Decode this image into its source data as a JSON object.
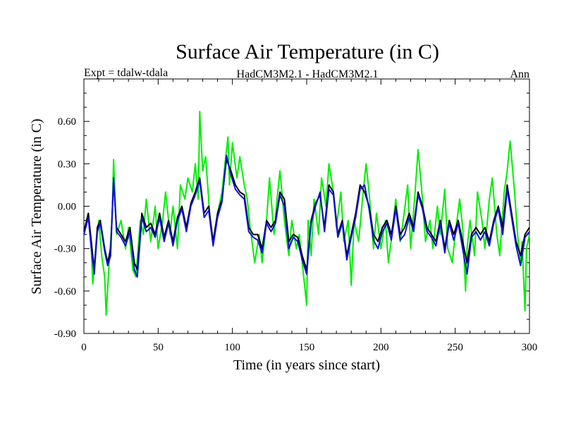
{
  "chart_data": {
    "type": "line",
    "title": "Surface Air Temperature (in C)",
    "subtitle_left": "Expt = tdalw-tdala",
    "subtitle_center": "HadCM3M2.1 - HadCM3M2.1",
    "subtitle_right": "Ann",
    "xlabel": "Time (in years since start)",
    "ylabel": "Surface Air Temperature (in C)",
    "xlim": [
      0,
      300
    ],
    "ylim": [
      -0.9,
      0.9
    ],
    "x_ticks": [
      0,
      50,
      100,
      150,
      200,
      250,
      300
    ],
    "x_tick_labels": [
      "0",
      "50",
      "100",
      "150",
      "200",
      "250",
      "300"
    ],
    "y_ticks": [
      -0.9,
      -0.6,
      -0.3,
      0.0,
      0.3,
      0.6
    ],
    "y_tick_labels": [
      "-0.90",
      "-0.60",
      "-0.30",
      "0.00",
      "0.30",
      "0.60"
    ],
    "grid": false,
    "series": [
      {
        "name": "green",
        "color": "#00ee00",
        "x": [
          0,
          3,
          5,
          6,
          8,
          10,
          12,
          14,
          15,
          17,
          19,
          20,
          22,
          25,
          28,
          30,
          33,
          35,
          38,
          40,
          42,
          45,
          48,
          50,
          53,
          55,
          58,
          60,
          63,
          65,
          68,
          70,
          73,
          75,
          77,
          78,
          80,
          82,
          85,
          87,
          90,
          93,
          95,
          97,
          98,
          100,
          103,
          105,
          108,
          110,
          112,
          115,
          118,
          120,
          123,
          125,
          128,
          130,
          132,
          135,
          138,
          140,
          143,
          145,
          148,
          150,
          151,
          153,
          155,
          158,
          160,
          163,
          165,
          168,
          170,
          173,
          175,
          178,
          180,
          182,
          185,
          188,
          190,
          192,
          195,
          197,
          200,
          203,
          205,
          208,
          210,
          213,
          215,
          218,
          220,
          223,
          225,
          228,
          230,
          233,
          235,
          238,
          240,
          243,
          245,
          248,
          250,
          253,
          255,
          257,
          258,
          260,
          263,
          265,
          268,
          270,
          273,
          275,
          278,
          280,
          283,
          285,
          287,
          290,
          292,
          294,
          295,
          297,
          298,
          300
        ],
        "y": [
          -0.2,
          -0.05,
          -0.3,
          -0.55,
          -0.3,
          -0.1,
          -0.35,
          -0.5,
          -0.77,
          -0.4,
          -0.1,
          0.33,
          -0.2,
          -0.1,
          -0.3,
          -0.15,
          -0.45,
          -0.5,
          -0.1,
          -0.2,
          0.05,
          -0.25,
          0.0,
          -0.3,
          -0.1,
          0.1,
          -0.2,
          0.0,
          -0.3,
          0.15,
          0.05,
          0.2,
          0.1,
          0.3,
          0.05,
          0.67,
          0.25,
          0.35,
          -0.1,
          -0.25,
          -0.05,
          0.1,
          0.3,
          0.49,
          0.15,
          0.45,
          0.2,
          0.35,
          0.15,
          0.05,
          -0.15,
          -0.4,
          -0.2,
          -0.4,
          -0.1,
          0.2,
          -0.2,
          0.05,
          0.25,
          -0.1,
          -0.35,
          -0.1,
          -0.3,
          -0.2,
          -0.5,
          -0.7,
          -0.1,
          -0.35,
          0.05,
          -0.2,
          0.2,
          0.0,
          0.3,
          0.1,
          -0.15,
          0.1,
          -0.25,
          -0.1,
          -0.56,
          -0.1,
          -0.25,
          0.1,
          0.3,
          0.1,
          -0.3,
          -0.05,
          -0.3,
          -0.1,
          -0.4,
          -0.15,
          0.05,
          -0.25,
          -0.1,
          0.15,
          -0.3,
          0.1,
          0.4,
          0.05,
          -0.25,
          -0.1,
          -0.3,
          0.0,
          -0.2,
          0.12,
          -0.3,
          -0.4,
          -0.2,
          0.05,
          -0.15,
          -0.6,
          -0.3,
          -0.1,
          -0.35,
          0.1,
          -0.1,
          -0.3,
          0.05,
          0.2,
          -0.2,
          -0.35,
          0.1,
          0.25,
          0.46,
          0.1,
          -0.2,
          -0.4,
          -0.25,
          -0.74,
          -0.3,
          -0.2
        ]
      },
      {
        "name": "black",
        "color": "#000000",
        "x": [
          0,
          3,
          5,
          7,
          9,
          11,
          14,
          16,
          18,
          20,
          22,
          25,
          28,
          31,
          34,
          36,
          39,
          42,
          45,
          48,
          51,
          54,
          57,
          60,
          63,
          66,
          69,
          72,
          75,
          78,
          81,
          84,
          87,
          90,
          93,
          96,
          99,
          102,
          105,
          108,
          111,
          114,
          117,
          120,
          123,
          126,
          129,
          132,
          135,
          138,
          141,
          144,
          147,
          150,
          153,
          156,
          159,
          162,
          165,
          168,
          171,
          174,
          177,
          180,
          183,
          186,
          189,
          192,
          195,
          198,
          201,
          204,
          207,
          210,
          213,
          216,
          219,
          222,
          225,
          228,
          231,
          234,
          237,
          240,
          243,
          246,
          249,
          252,
          255,
          258,
          261,
          264,
          267,
          270,
          273,
          276,
          279,
          282,
          285,
          288,
          291,
          294,
          297,
          300
        ],
        "y": [
          -0.18,
          -0.05,
          -0.25,
          -0.45,
          -0.15,
          -0.1,
          -0.3,
          -0.4,
          -0.3,
          0.18,
          -0.15,
          -0.2,
          -0.25,
          -0.15,
          -0.4,
          -0.45,
          -0.05,
          -0.15,
          -0.12,
          -0.2,
          -0.05,
          -0.22,
          -0.1,
          -0.25,
          -0.08,
          0.0,
          -0.15,
          0.02,
          0.1,
          0.2,
          -0.05,
          0.0,
          -0.25,
          -0.05,
          0.05,
          0.33,
          0.25,
          0.15,
          0.1,
          0.08,
          -0.15,
          -0.2,
          -0.2,
          -0.3,
          -0.1,
          -0.15,
          -0.1,
          0.1,
          0.05,
          -0.25,
          -0.2,
          -0.22,
          -0.35,
          -0.45,
          -0.1,
          0.02,
          0.08,
          -0.15,
          0.15,
          0.1,
          -0.2,
          -0.1,
          -0.35,
          -0.2,
          -0.05,
          0.15,
          0.1,
          0.0,
          -0.2,
          -0.25,
          -0.15,
          -0.1,
          -0.2,
          0.0,
          -0.2,
          -0.15,
          -0.05,
          -0.15,
          0.1,
          0.0,
          -0.15,
          -0.2,
          -0.25,
          -0.1,
          -0.3,
          -0.1,
          -0.2,
          -0.1,
          -0.25,
          -0.4,
          -0.2,
          -0.15,
          -0.2,
          -0.15,
          -0.25,
          -0.1,
          0.0,
          -0.15,
          0.15,
          -0.05,
          -0.25,
          -0.35,
          -0.2,
          -0.15
        ]
      },
      {
        "name": "blue",
        "color": "#1010dd",
        "x": [
          0,
          3,
          5,
          7,
          9,
          11,
          14,
          16,
          18,
          20,
          22,
          25,
          28,
          31,
          34,
          36,
          39,
          42,
          45,
          48,
          51,
          54,
          57,
          60,
          63,
          66,
          69,
          72,
          75,
          78,
          81,
          84,
          87,
          90,
          93,
          96,
          99,
          102,
          105,
          108,
          111,
          114,
          117,
          120,
          123,
          126,
          129,
          132,
          135,
          138,
          141,
          144,
          147,
          150,
          153,
          156,
          159,
          162,
          165,
          168,
          171,
          174,
          177,
          180,
          183,
          186,
          189,
          192,
          195,
          198,
          201,
          204,
          207,
          210,
          213,
          216,
          219,
          222,
          225,
          228,
          231,
          234,
          237,
          240,
          243,
          246,
          249,
          252,
          255,
          258,
          261,
          264,
          267,
          270,
          273,
          276,
          279,
          282,
          285,
          288,
          291,
          294,
          297,
          300
        ],
        "y": [
          -0.2,
          -0.08,
          -0.3,
          -0.48,
          -0.18,
          -0.12,
          -0.32,
          -0.42,
          -0.35,
          0.2,
          -0.18,
          -0.22,
          -0.28,
          -0.18,
          -0.45,
          -0.5,
          -0.08,
          -0.18,
          -0.15,
          -0.22,
          -0.08,
          -0.25,
          -0.12,
          -0.28,
          -0.1,
          -0.02,
          -0.18,
          0.0,
          0.08,
          0.18,
          -0.08,
          -0.03,
          -0.28,
          -0.08,
          0.03,
          0.36,
          0.22,
          0.12,
          0.08,
          0.05,
          -0.18,
          -0.22,
          -0.24,
          -0.33,
          -0.12,
          -0.18,
          -0.12,
          0.08,
          0.0,
          -0.3,
          -0.22,
          -0.25,
          -0.38,
          -0.48,
          -0.12,
          0.0,
          0.1,
          -0.18,
          0.12,
          0.08,
          -0.22,
          -0.12,
          -0.38,
          -0.22,
          -0.08,
          0.12,
          0.15,
          -0.02,
          -0.24,
          -0.3,
          -0.18,
          -0.12,
          -0.24,
          -0.02,
          -0.24,
          -0.2,
          -0.08,
          -0.18,
          0.08,
          -0.02,
          -0.18,
          -0.22,
          -0.28,
          -0.12,
          -0.33,
          -0.12,
          -0.24,
          -0.12,
          -0.3,
          -0.48,
          -0.22,
          -0.18,
          -0.24,
          -0.18,
          -0.28,
          -0.12,
          -0.02,
          -0.2,
          0.12,
          -0.08,
          -0.28,
          -0.42,
          -0.22,
          -0.18
        ]
      }
    ]
  }
}
